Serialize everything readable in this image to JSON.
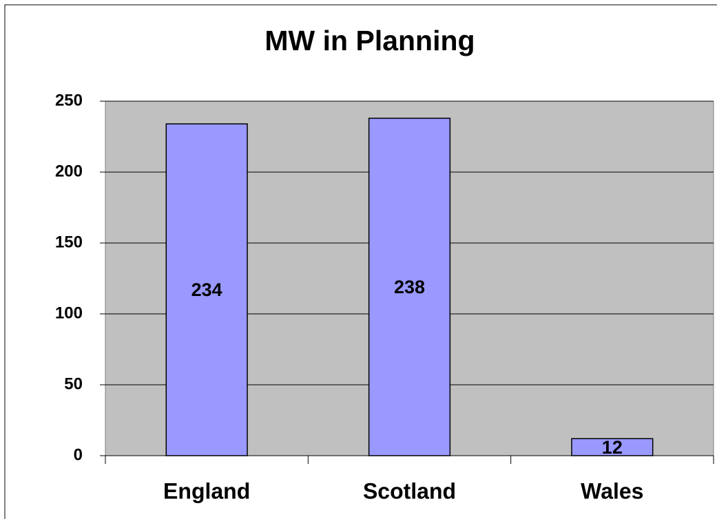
{
  "chart_data": {
    "type": "bar",
    "title": "MW in Planning",
    "categories": [
      "England",
      "Scotland",
      "Wales"
    ],
    "values": [
      234,
      238,
      12
    ],
    "color": "#9999ff",
    "ylim": [
      0,
      250
    ],
    "yticks": [
      0,
      50,
      100,
      150,
      200,
      250
    ],
    "grid": true
  }
}
